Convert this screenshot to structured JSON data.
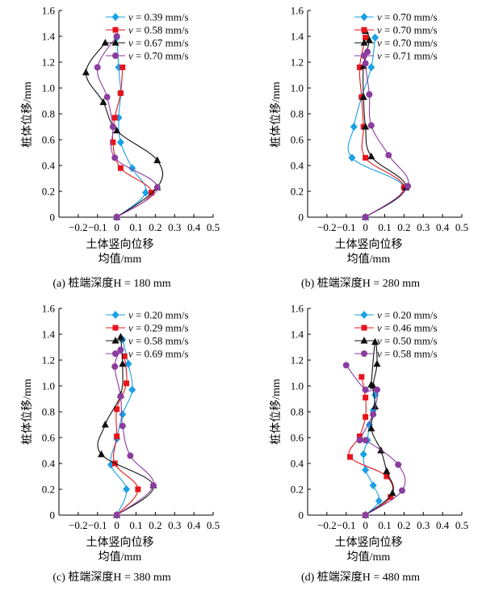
{
  "figure": {
    "xlabel_line1": "土体竖向位移",
    "xlabel_line2": "均值/mm",
    "ylabel": "桩体位移/mm",
    "legend_prefix": "v",
    "legend_unit": "mm/s"
  },
  "series_colors": [
    "#1aa0e6",
    "#e8141b",
    "#111111",
    "#8a3d9e"
  ],
  "series_markers": [
    "diamond",
    "square",
    "triangle",
    "circle"
  ],
  "chart_data": [
    {
      "type": "line",
      "caption": "(a) 桩端深度H = 180 mm",
      "xlabel": "土体竖向位移 均值/mm",
      "ylabel": "桩体位移/mm",
      "xlim": [
        -0.3,
        0.5
      ],
      "ylim": [
        0,
        1.6
      ],
      "xticks": [
        -0.2,
        -0.1,
        0,
        0.1,
        0.2,
        0.3,
        0.4,
        0.5
      ],
      "yticks": [
        0,
        0.2,
        0.4,
        0.6,
        0.8,
        1.0,
        1.2,
        1.4,
        1.6
      ],
      "legend_position": "top-right",
      "series": [
        {
          "name": "v = 0.39 mm/s",
          "x": [
            0,
            0.15,
            0.08,
            0.02,
            0.01,
            0.02,
            0.01,
            0.0
          ],
          "y": [
            0,
            0.19,
            0.38,
            0.58,
            0.77,
            0.96,
            1.16,
            1.39
          ]
        },
        {
          "name": "v = 0.58 mm/s",
          "x": [
            0,
            0.18,
            0.02,
            -0.02,
            -0.01,
            0.02,
            0.03
          ],
          "y": [
            0,
            0.19,
            0.38,
            0.58,
            0.77,
            0.96,
            1.16
          ]
        },
        {
          "name": "v = 0.67 mm/s",
          "x": [
            0,
            0.21,
            0.21,
            0.0,
            -0.07,
            -0.16,
            -0.06
          ],
          "y": [
            0,
            0.23,
            0.44,
            0.67,
            0.89,
            1.12,
            1.35
          ]
        },
        {
          "name": "v = 0.70 mm/s",
          "x": [
            0,
            0.21,
            -0.01,
            -0.02,
            -0.05,
            -0.1,
            0.0
          ],
          "y": [
            0,
            0.23,
            0.46,
            0.7,
            0.93,
            1.16,
            1.4
          ]
        }
      ]
    },
    {
      "type": "line",
      "caption": "(b) 桩端深度H = 280 mm",
      "xlabel": "土体竖向位移 均值/mm",
      "ylabel": "桩体位移/mm",
      "xlim": [
        -0.3,
        0.5
      ],
      "ylim": [
        0,
        1.6
      ],
      "xticks": [
        -0.2,
        -0.1,
        0,
        0.1,
        0.2,
        0.3,
        0.4,
        0.5
      ],
      "yticks": [
        0,
        0.2,
        0.4,
        0.6,
        0.8,
        1.0,
        1.2,
        1.4,
        1.6
      ],
      "legend_position": "top-right",
      "series": [
        {
          "name": "v = 0.70 mm/s",
          "x": [
            0,
            0.2,
            -0.07,
            -0.06,
            -0.02,
            0.03,
            0.05
          ],
          "y": [
            0,
            0.23,
            0.46,
            0.7,
            0.93,
            1.16,
            1.39
          ]
        },
        {
          "name": "v = 0.70 mm/s",
          "x": [
            0,
            0.2,
            0.0,
            -0.01,
            -0.02,
            -0.03,
            0.0
          ],
          "y": [
            0,
            0.23,
            0.46,
            0.7,
            0.93,
            1.16,
            1.39
          ]
        },
        {
          "name": "v = 0.70 mm/s",
          "x": [
            0,
            0.21,
            0.03,
            0.0,
            -0.01,
            -0.01,
            0.02,
            0.0
          ],
          "y": [
            0,
            0.23,
            0.47,
            0.7,
            0.93,
            1.17,
            1.37,
            1.44
          ]
        },
        {
          "name": "v = 0.71 mm/s",
          "x": [
            0,
            0.22,
            0.12,
            0.03,
            0.02,
            0.0,
            0.01
          ],
          "y": [
            0,
            0.24,
            0.48,
            0.71,
            0.95,
            1.19,
            1.28
          ]
        }
      ]
    },
    {
      "type": "line",
      "caption": "(c) 桩端深度H = 380 mm",
      "xlabel": "土体竖向位移 均值/mm",
      "ylabel": "桩体位移/mm",
      "xlim": [
        -0.3,
        0.5
      ],
      "ylim": [
        0,
        1.6
      ],
      "xticks": [
        -0.2,
        -0.1,
        0,
        0.1,
        0.2,
        0.3,
        0.4,
        0.5
      ],
      "yticks": [
        0,
        0.2,
        0.4,
        0.6,
        0.8,
        1.0,
        1.2,
        1.4,
        1.6
      ],
      "legend_position": "top-right",
      "series": [
        {
          "name": "v = 0.20 mm/s",
          "x": [
            0,
            0.05,
            -0.03,
            0.0,
            0.03,
            0.08,
            0.06,
            0.03
          ],
          "y": [
            0,
            0.2,
            0.39,
            0.59,
            0.78,
            0.97,
            1.17,
            1.36
          ]
        },
        {
          "name": "v = 0.29 mm/s",
          "x": [
            0,
            0.11,
            -0.01,
            0.0,
            0.0,
            0.05,
            0.04
          ],
          "y": [
            0,
            0.2,
            0.4,
            0.61,
            0.82,
            1.02,
            1.23
          ]
        },
        {
          "name": "v = 0.58 mm/s",
          "x": [
            0,
            0.19,
            -0.08,
            -0.06,
            0.02,
            0.03,
            0.02
          ],
          "y": [
            0,
            0.23,
            0.47,
            0.7,
            0.93,
            1.17,
            1.38
          ]
        },
        {
          "name": "v = 0.69 mm/s",
          "x": [
            0,
            0.19,
            0.07,
            0.03,
            0.02,
            -0.01,
            0.02
          ],
          "y": [
            0,
            0.23,
            0.46,
            0.69,
            0.92,
            1.15,
            1.28
          ]
        }
      ]
    },
    {
      "type": "line",
      "caption": "(d) 桩端深度H = 480 mm",
      "xlabel": "土体竖向位移 均值/mm",
      "ylabel": "桩体位移/mm",
      "xlim": [
        -0.3,
        0.5
      ],
      "ylim": [
        0,
        1.6
      ],
      "xticks": [
        -0.2,
        -0.1,
        0,
        0.1,
        0.2,
        0.3,
        0.4,
        0.5
      ],
      "yticks": [
        0,
        0.2,
        0.4,
        0.6,
        0.8,
        1.0,
        1.2,
        1.4,
        1.6
      ],
      "legend_position": "top-right",
      "series": [
        {
          "name": "v = 0.20 mm/s",
          "x": [
            0,
            0.07,
            0.04,
            0.0,
            -0.01,
            0.01,
            0.02,
            0.04,
            0.05
          ],
          "y": [
            0,
            0.11,
            0.23,
            0.35,
            0.47,
            0.58,
            0.7,
            0.81,
            0.93
          ]
        },
        {
          "name": "v = 0.46 mm/s",
          "x": [
            0,
            0.13,
            0.11,
            -0.08,
            -0.03,
            0.0,
            0.0,
            -0.02
          ],
          "y": [
            0,
            0.14,
            0.3,
            0.45,
            0.61,
            0.76,
            0.91,
            1.07
          ]
        },
        {
          "name": "v = 0.50 mm/s",
          "x": [
            0,
            0.14,
            0.11,
            0.08,
            0.03,
            0.05,
            0.04,
            0.06,
            0.05,
            0.03
          ],
          "y": [
            0,
            0.17,
            0.34,
            0.5,
            0.67,
            0.84,
            1.0,
            1.17,
            1.34,
            1.01
          ]
        },
        {
          "name": "v = 0.58 mm/s",
          "x": [
            0,
            0.19,
            0.17,
            0.0,
            -0.03,
            0.04,
            0.06,
            0.0,
            -0.1
          ],
          "y": [
            0,
            0.19,
            0.39,
            0.58,
            0.58,
            0.78,
            0.97,
            0.97,
            1.16
          ]
        }
      ]
    }
  ]
}
